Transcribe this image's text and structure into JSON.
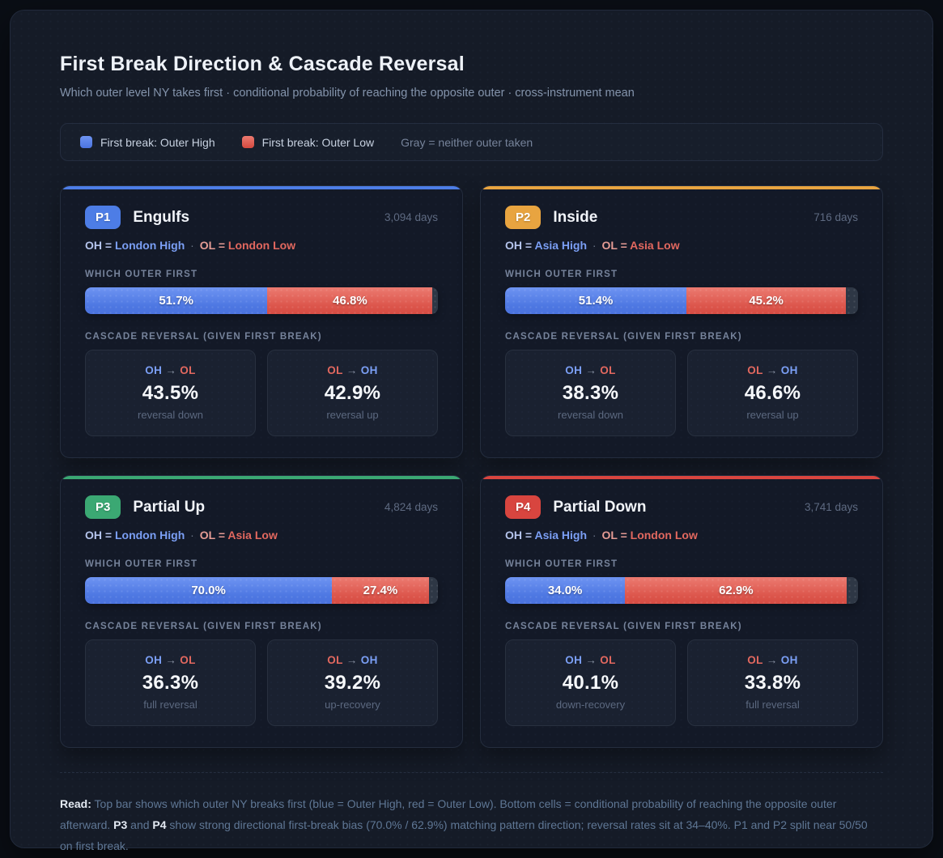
{
  "page": {
    "title": "First Break Direction & Cascade Reversal",
    "subtitle": "Which outer level NY takes first · conditional probability of reaching the opposite outer · cross-instrument mean"
  },
  "legend": {
    "outer_high": "First break: Outer High",
    "outer_low": "First break: Outer Low",
    "gray_note": "Gray = neither outer taken"
  },
  "labels": {
    "which_outer_first": "WHICH OUTER FIRST",
    "cascade_reversal": "CASCADE REVERSAL (GIVEN FIRST BREAK)",
    "arrow": "→",
    "dot": "·"
  },
  "colors": {
    "first_break_high_blue": "#5b84ea",
    "first_break_low_red": "#dd5a50",
    "neither_gray": "#2e3745",
    "accent_p1": "#4d7de6",
    "accent_p2": "#e8a440",
    "accent_p3": "#3ba873",
    "accent_p4": "#d8453f"
  },
  "cards": [
    {
      "badge": "P1",
      "accent": "#4d7de6",
      "title": "Engulfs",
      "days": "3,094 days",
      "oh_key": "OH =",
      "oh_value": "London High",
      "ol_key": "OL =",
      "ol_value": "London Low",
      "bar": {
        "high_pct": 51.7,
        "high_label": "51.7%",
        "low_pct": 46.8,
        "low_label": "46.8%",
        "gray_pct": 1.5
      },
      "cells": [
        {
          "from": "OH",
          "to": "OL",
          "value": "43.5%",
          "caption": "reversal down"
        },
        {
          "from": "OL",
          "to": "OH",
          "value": "42.9%",
          "caption": "reversal up"
        }
      ]
    },
    {
      "badge": "P2",
      "accent": "#e8a440",
      "title": "Inside",
      "days": "716 days",
      "oh_key": "OH =",
      "oh_value": "Asia High",
      "ol_key": "OL =",
      "ol_value": "Asia Low",
      "bar": {
        "high_pct": 51.4,
        "high_label": "51.4%",
        "low_pct": 45.2,
        "low_label": "45.2%",
        "gray_pct": 3.4
      },
      "cells": [
        {
          "from": "OH",
          "to": "OL",
          "value": "38.3%",
          "caption": "reversal down"
        },
        {
          "from": "OL",
          "to": "OH",
          "value": "46.6%",
          "caption": "reversal up"
        }
      ]
    },
    {
      "badge": "P3",
      "accent": "#3ba873",
      "title": "Partial Up",
      "days": "4,824 days",
      "oh_key": "OH =",
      "oh_value": "London High",
      "ol_key": "OL =",
      "ol_value": "Asia Low",
      "bar": {
        "high_pct": 70.0,
        "high_label": "70.0%",
        "low_pct": 27.4,
        "low_label": "27.4%",
        "gray_pct": 2.6
      },
      "cells": [
        {
          "from": "OH",
          "to": "OL",
          "value": "36.3%",
          "caption": "full reversal"
        },
        {
          "from": "OL",
          "to": "OH",
          "value": "39.2%",
          "caption": "up-recovery"
        }
      ]
    },
    {
      "badge": "P4",
      "accent": "#d8453f",
      "title": "Partial Down",
      "days": "3,741 days",
      "oh_key": "OH =",
      "oh_value": "Asia High",
      "ol_key": "OL =",
      "ol_value": "London Low",
      "bar": {
        "high_pct": 34.0,
        "high_label": "34.0%",
        "low_pct": 62.9,
        "low_label": "62.9%",
        "gray_pct": 3.1
      },
      "cells": [
        {
          "from": "OH",
          "to": "OL",
          "value": "40.1%",
          "caption": "down-recovery"
        },
        {
          "from": "OL",
          "to": "OH",
          "value": "33.8%",
          "caption": "full reversal"
        }
      ]
    }
  ],
  "footer": {
    "read_label": "Read:",
    "t1": " Top bar shows which outer NY breaks first (blue = Outer High, red = Outer Low). Bottom cells = conditional probability of reaching the opposite outer afterward. ",
    "b1": "P3",
    "t2": " and ",
    "b2": "P4",
    "t3": " show strong directional first-break bias (70.0% / 62.9%) matching pattern direction; reversal rates sit at 34–40%. P1 and P2 split near 50/50 on first break."
  },
  "chart_data": {
    "type": "bar",
    "subtype": "horizontal-stacked",
    "title": "First Break Direction & Cascade Reversal",
    "categories": [
      "P1 Engulfs",
      "P2 Inside",
      "P3 Partial Up",
      "P4 Partial Down"
    ],
    "sample_days": [
      3094,
      716,
      4824,
      3741
    ],
    "series": [
      {
        "name": "First break: Outer High",
        "values": [
          51.7,
          51.4,
          70.0,
          34.0
        ],
        "color": "#5b84ea"
      },
      {
        "name": "First break: Outer Low",
        "values": [
          46.8,
          45.2,
          27.4,
          62.9
        ],
        "color": "#dd5a50"
      },
      {
        "name": "Neither outer taken",
        "values": [
          1.5,
          3.4,
          2.6,
          3.1
        ],
        "color": "#2e3745"
      }
    ],
    "cascade_reversal": {
      "OH_to_OL": {
        "values": [
          43.5,
          38.3,
          36.3,
          40.1
        ],
        "captions": [
          "reversal down",
          "reversal down",
          "full reversal",
          "down-recovery"
        ]
      },
      "OL_to_OH": {
        "values": [
          42.9,
          46.6,
          39.2,
          33.8
        ],
        "captions": [
          "reversal up",
          "reversal up",
          "up-recovery",
          "full reversal"
        ]
      }
    },
    "outer_definitions": [
      {
        "pattern": "P1",
        "OH": "London High",
        "OL": "London Low"
      },
      {
        "pattern": "P2",
        "OH": "Asia High",
        "OL": "Asia Low"
      },
      {
        "pattern": "P3",
        "OH": "London High",
        "OL": "Asia Low"
      },
      {
        "pattern": "P4",
        "OH": "Asia High",
        "OL": "London Low"
      }
    ],
    "xlim": [
      0,
      100
    ],
    "legend_position": "top",
    "grid": false
  }
}
